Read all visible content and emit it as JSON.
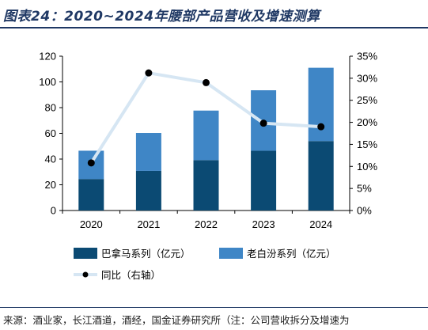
{
  "header": {
    "title": "图表24：2020~2024年腰部产品营收及增速测算"
  },
  "footer": {
    "source": "来源：酒业家，长江酒道，酒经，国金证券研究所（注：公司营收拆分及增速为"
  },
  "colors": {
    "dark": "#0b4a73",
    "light": "#3f86c6",
    "line": "#d6e6f3",
    "marker": "#000000",
    "title": "#1f3864"
  },
  "chart_data": {
    "type": "bar",
    "stacked": true,
    "categories": [
      "2020",
      "2021",
      "2022",
      "2023",
      "2024"
    ],
    "series": [
      {
        "name": "巴拿马系列（亿元）",
        "axis": "left",
        "values": [
          24.5,
          30.8,
          39.2,
          46.5,
          54.0
        ]
      },
      {
        "name": "老白汾系列（亿元）",
        "axis": "left",
        "values": [
          22.0,
          29.5,
          38.5,
          47.0,
          57.0
        ]
      },
      {
        "name": "同比（右轴）",
        "type": "line",
        "axis": "right",
        "values": [
          10.8,
          31.2,
          29.0,
          19.8,
          19.0
        ]
      }
    ],
    "left_axis": {
      "ylim": [
        0,
        120
      ],
      "ticks": [
        "0",
        "20",
        "40",
        "60",
        "80",
        "100",
        "120"
      ]
    },
    "right_axis": {
      "ylim": [
        0,
        35
      ],
      "ticks": [
        "0%",
        "5%",
        "10%",
        "15%",
        "20%",
        "25%",
        "30%",
        "35%"
      ]
    },
    "legend_position": "bottom",
    "grid": false
  }
}
